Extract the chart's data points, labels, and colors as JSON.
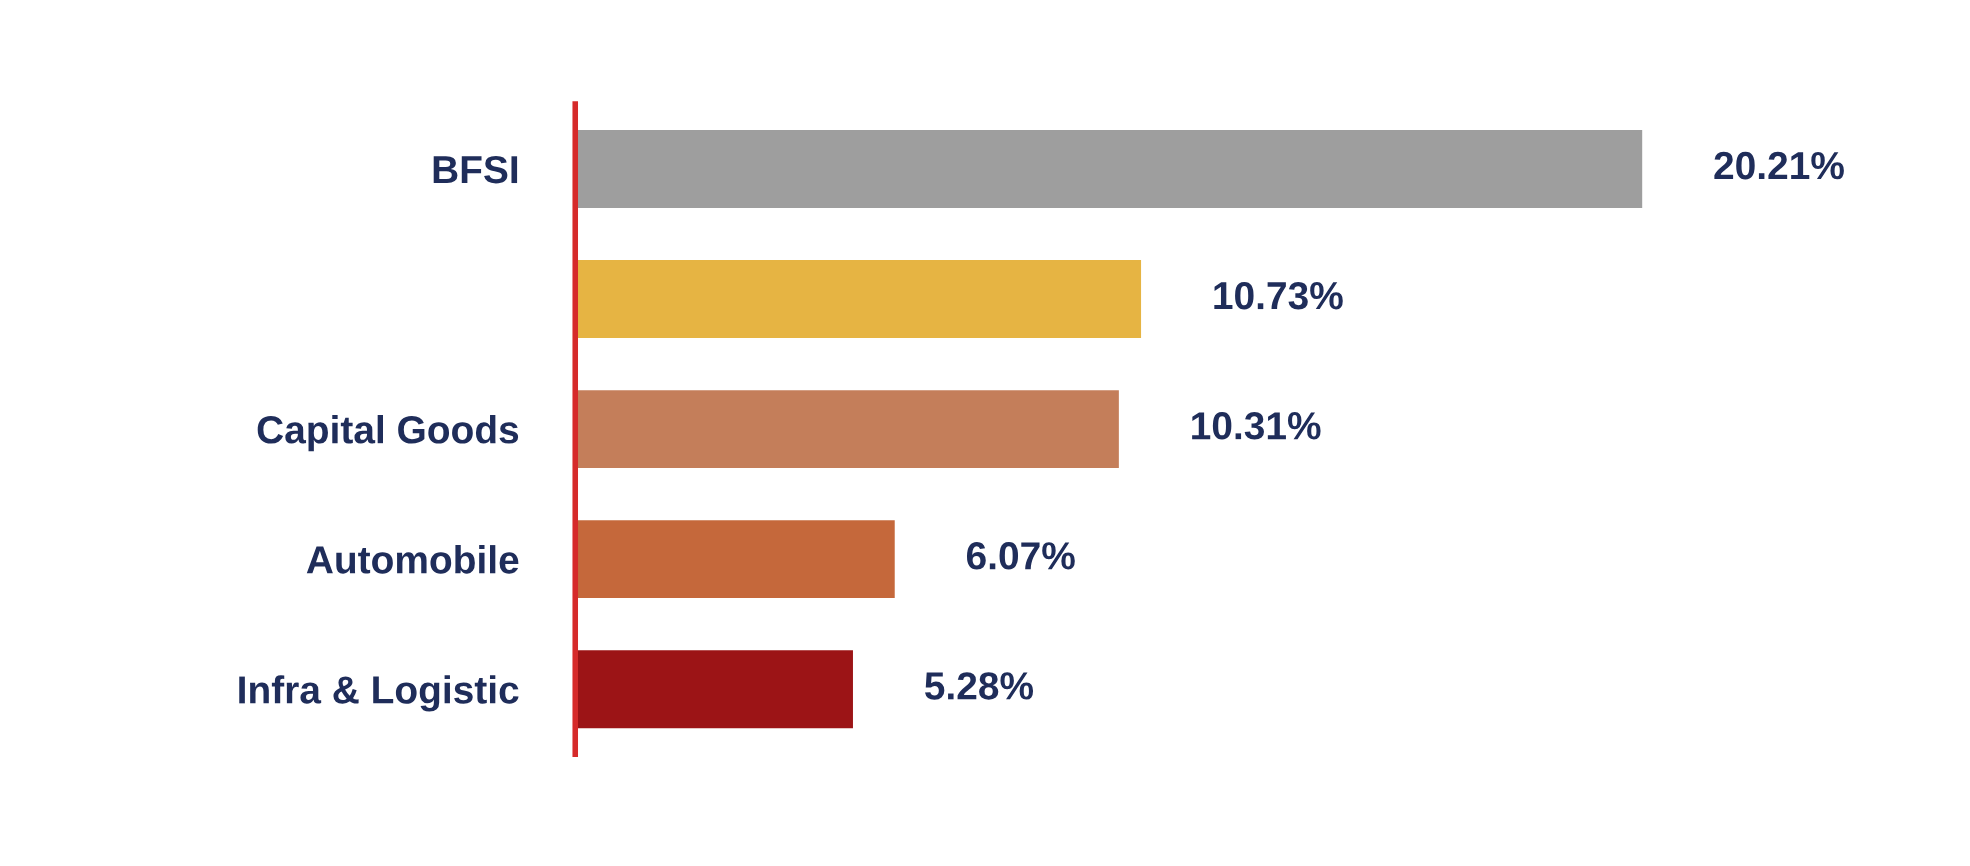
{
  "chart_data": {
    "type": "bar",
    "orientation": "horizontal",
    "categories": [
      "BFSI",
      null,
      "Capital Goods",
      "Automobile",
      "Infra & Logistic"
    ],
    "values": [
      20.21,
      10.73,
      10.31,
      6.07,
      5.28
    ],
    "colors": [
      "#9e9e9e",
      "#e6b443",
      "#c47e5a",
      "#c5683b",
      "#9c1416"
    ],
    "value_labels": [
      "20.21%",
      "10.73%",
      "10.31%",
      "6.07%",
      "5.28%"
    ],
    "grid": false,
    "legend": false
  }
}
